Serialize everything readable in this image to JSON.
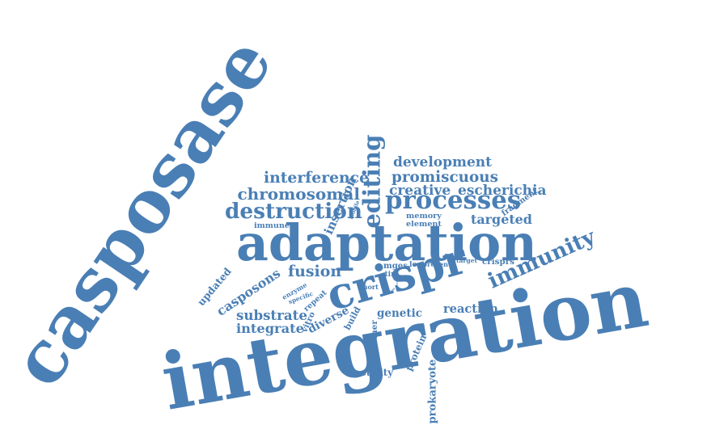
{
  "color": "#4a7fb5",
  "words": [
    {
      "key": "integration",
      "text": "integration"
    },
    {
      "key": "casposase",
      "text": "casposase"
    },
    {
      "key": "adaptation",
      "text": "adaptation"
    },
    {
      "key": "crispr",
      "text": "crispr"
    },
    {
      "key": "immunity",
      "text": "immunity"
    },
    {
      "key": "processes",
      "text": "processes"
    },
    {
      "key": "editing",
      "text": "editing"
    },
    {
      "key": "destruction",
      "text": "destruction"
    },
    {
      "key": "chromosomal",
      "text": "chromosomal"
    },
    {
      "key": "interference",
      "text": "interference"
    },
    {
      "key": "development",
      "text": "development"
    },
    {
      "key": "promiscuous",
      "text": "promiscuous"
    },
    {
      "key": "creative",
      "text": "creative"
    },
    {
      "key": "escherichia",
      "text": "escherichia"
    },
    {
      "key": "fragment",
      "text": "fragment"
    },
    {
      "key": "targeted",
      "text": "targeted"
    },
    {
      "key": "memory",
      "text": "memory"
    },
    {
      "key": "element",
      "text": "element"
    },
    {
      "key": "mobile",
      "text": "mobile"
    },
    {
      "key": "insertion",
      "text": "insertion"
    },
    {
      "key": "immune",
      "text": "immune"
    },
    {
      "key": "fusion",
      "text": "fusion"
    },
    {
      "key": "casposons",
      "text": "casposons"
    },
    {
      "key": "updated",
      "text": "updated"
    },
    {
      "key": "enzyme",
      "text": "enzyme"
    },
    {
      "key": "specific",
      "text": "specific"
    },
    {
      "key": "repeat",
      "text": "repeat"
    },
    {
      "key": "vitro",
      "text": "vitro"
    },
    {
      "key": "substrate",
      "text": "substrate"
    },
    {
      "key": "integrate",
      "text": "integrate"
    },
    {
      "key": "diverse",
      "text": "diverse"
    },
    {
      "key": "build",
      "text": "build"
    },
    {
      "key": "short",
      "text": "short"
    },
    {
      "key": "mges",
      "text": "mges"
    },
    {
      "key": "loop",
      "text": "loop"
    },
    {
      "key": "recent",
      "text": "recent"
    },
    {
      "key": "target",
      "text": "target"
    },
    {
      "key": "crisprs",
      "text": "crisprs"
    },
    {
      "key": "tirs",
      "text": "tirs"
    },
    {
      "key": "coli",
      "text": "coli"
    },
    {
      "key": "dna",
      "text": "dna"
    },
    {
      "key": "genetic",
      "text": "genetic"
    },
    {
      "key": "reaction",
      "text": "reaction"
    },
    {
      "key": "boomer",
      "text": "boomer"
    },
    {
      "key": "protein",
      "text": "protein"
    },
    {
      "key": "activity",
      "text": "activity"
    },
    {
      "key": "prokaryote",
      "text": "prokaryote"
    }
  ]
}
